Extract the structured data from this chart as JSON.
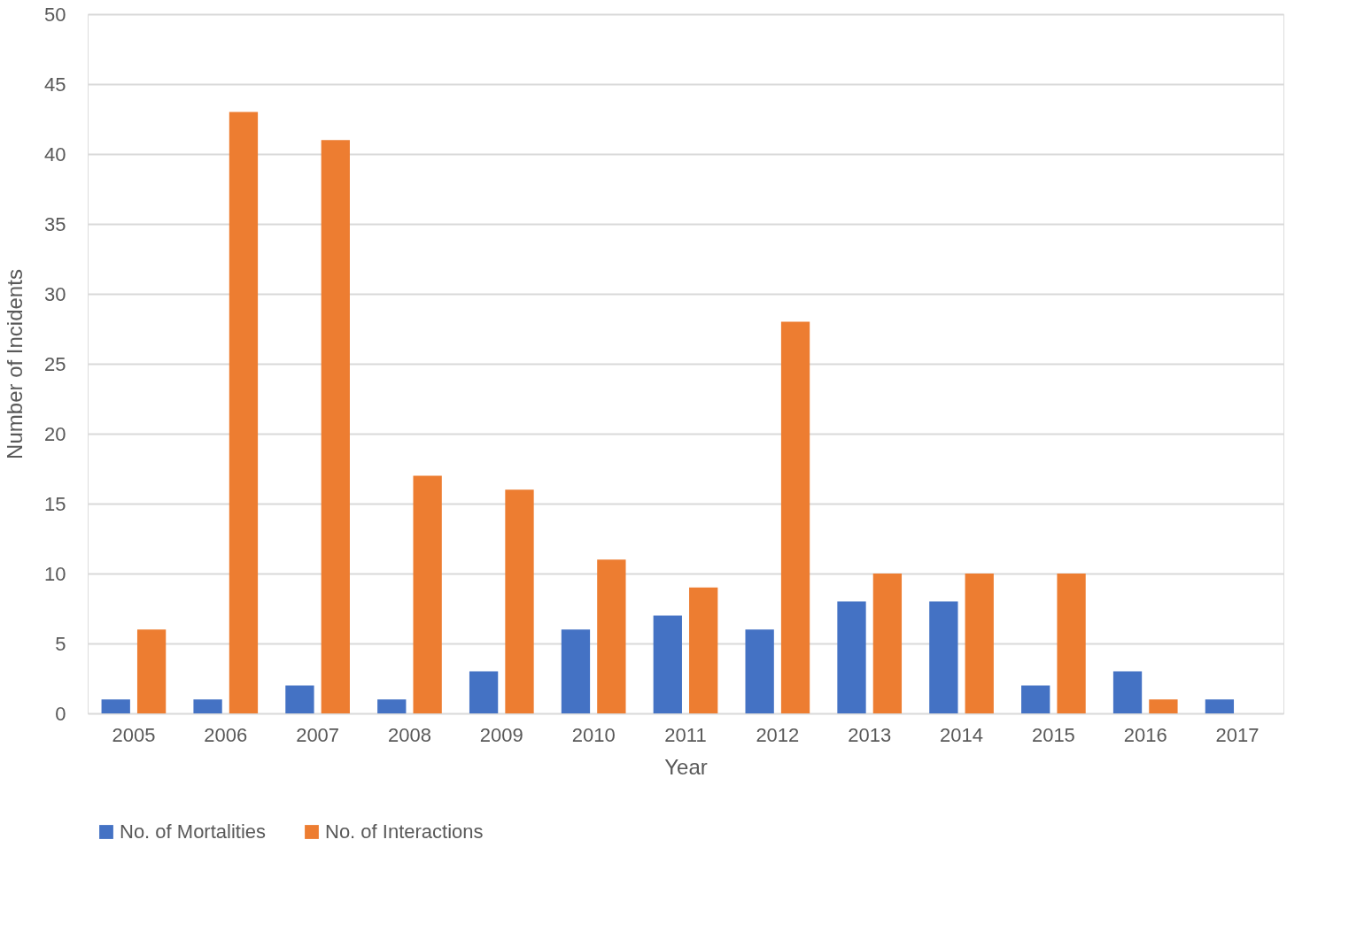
{
  "chart_data": {
    "type": "bar",
    "xlabel": "Year",
    "ylabel": "Number of Incidents",
    "categories": [
      "2005",
      "2006",
      "2007",
      "2008",
      "2009",
      "2010",
      "2011",
      "2012",
      "2013",
      "2014",
      "2015",
      "2016",
      "2017"
    ],
    "series": [
      {
        "name": "No. of Mortalities",
        "color": "#4472c4",
        "values": [
          1,
          1,
          2,
          1,
          3,
          6,
          7,
          6,
          8,
          8,
          2,
          3,
          1
        ]
      },
      {
        "name": "No. of Interactions",
        "color": "#ed7d31",
        "values": [
          6,
          43,
          41,
          17,
          16,
          11,
          9,
          28,
          10,
          10,
          10,
          1,
          null
        ]
      }
    ],
    "ylim": [
      0,
      50
    ],
    "yticks": [
      0,
      5,
      10,
      15,
      20,
      25,
      30,
      35,
      40,
      45,
      50
    ],
    "grid": "y",
    "legend": "bottom"
  }
}
